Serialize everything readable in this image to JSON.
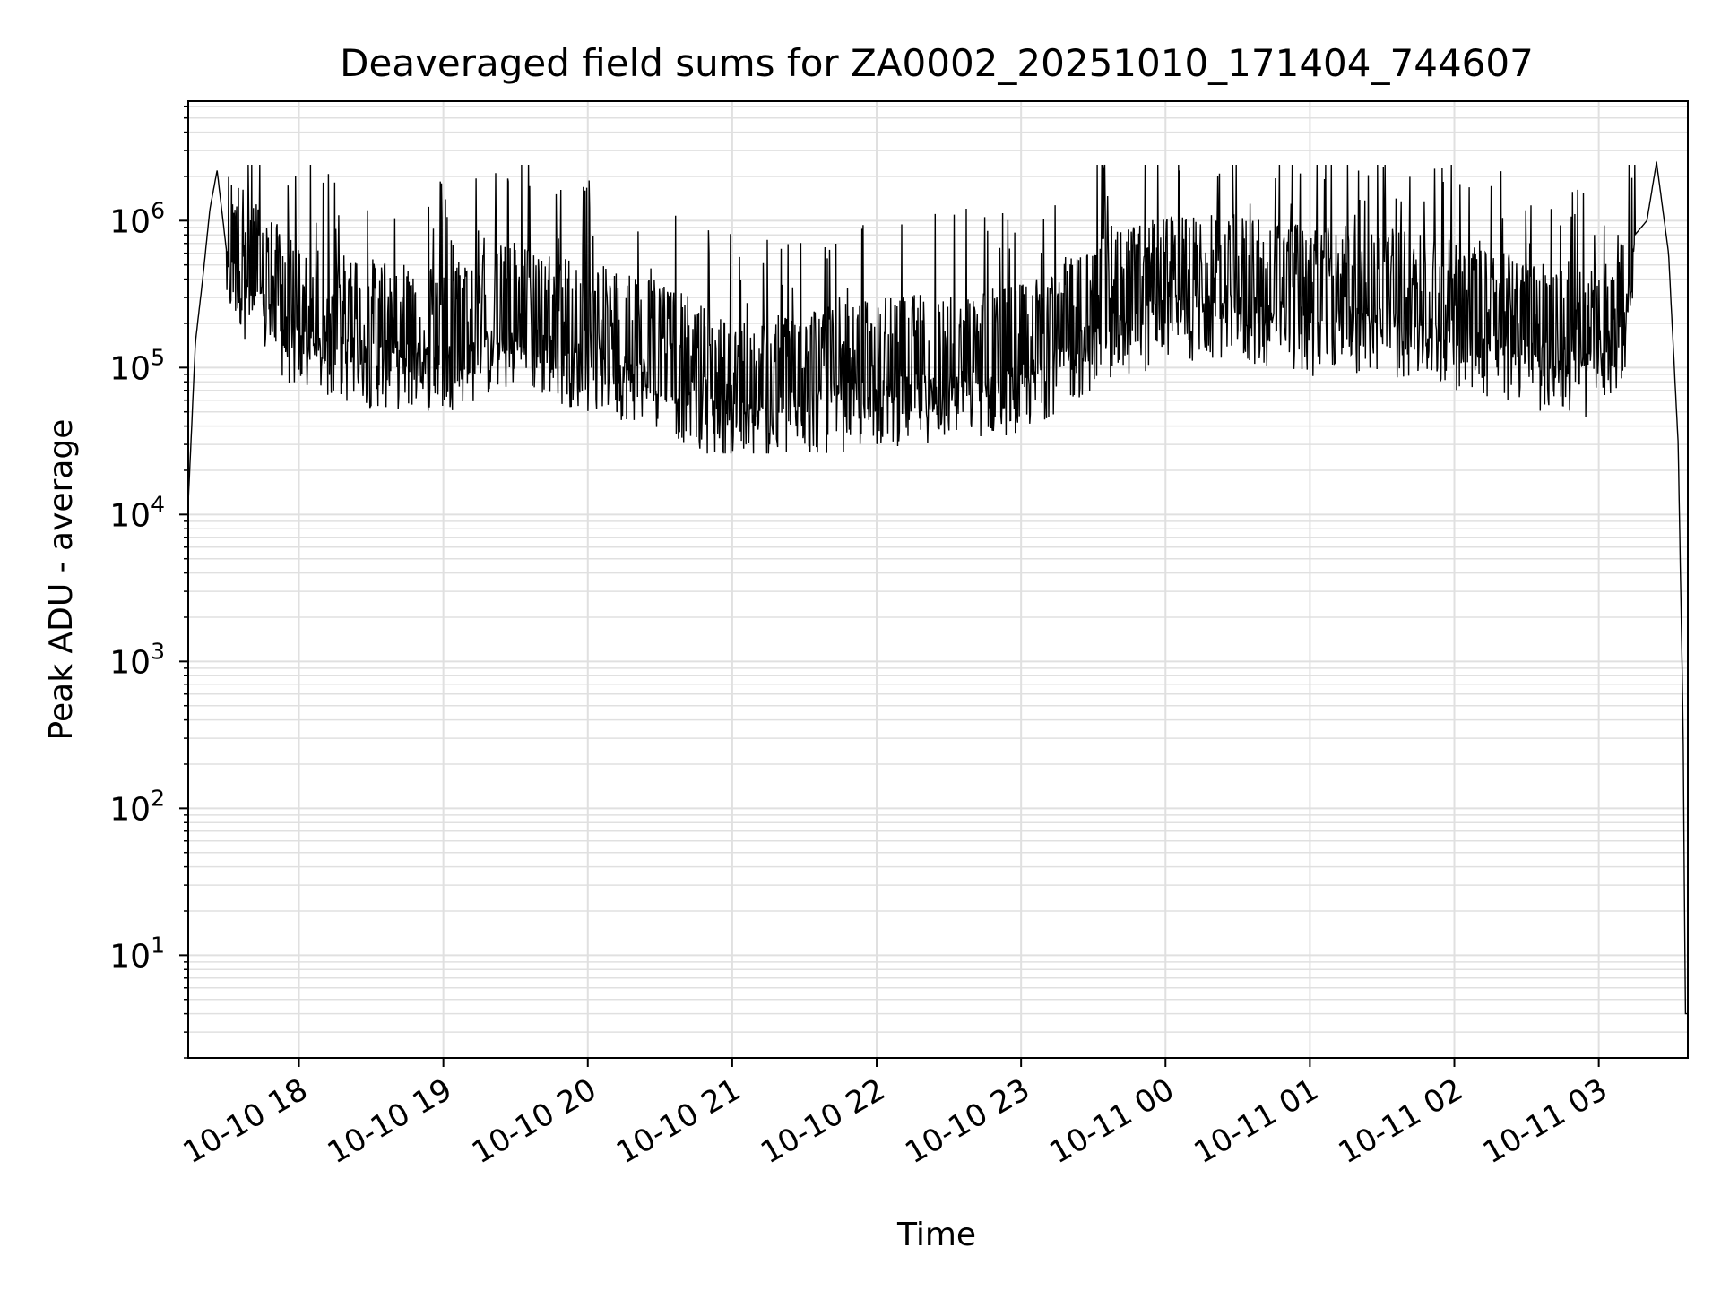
{
  "chart_data": {
    "type": "line",
    "title": "Deaveraged field sums for ZA0002_20251010_171404_744607",
    "xlabel": "Time",
    "ylabel": "Peak ADU - average",
    "yscale": "log",
    "ylim": [
      2,
      6500000
    ],
    "xlim": [
      "2025-10-10 17:14",
      "2025-10-11 03:37"
    ],
    "grid": true,
    "line_color": "#000000",
    "grid_color": "#e0e0e0",
    "x_ticks": [
      {
        "label": "10-10 18",
        "t": "2025-10-10 18:00"
      },
      {
        "label": "10-10 19",
        "t": "2025-10-10 19:00"
      },
      {
        "label": "10-10 20",
        "t": "2025-10-10 20:00"
      },
      {
        "label": "10-10 21",
        "t": "2025-10-10 21:00"
      },
      {
        "label": "10-10 22",
        "t": "2025-10-10 22:00"
      },
      {
        "label": "10-10 23",
        "t": "2025-10-10 23:00"
      },
      {
        "label": "10-11 00",
        "t": "2025-10-11 00:00"
      },
      {
        "label": "10-11 01",
        "t": "2025-10-11 01:00"
      },
      {
        "label": "10-11 02",
        "t": "2025-10-11 02:00"
      },
      {
        "label": "10-11 03",
        "t": "2025-10-11 03:00"
      }
    ],
    "y_ticks": [
      {
        "base": "10",
        "exp": "1",
        "value": 10
      },
      {
        "base": "10",
        "exp": "2",
        "value": 100
      },
      {
        "base": "10",
        "exp": "3",
        "value": 1000
      },
      {
        "base": "10",
        "exp": "4",
        "value": 10000
      },
      {
        "base": "10",
        "exp": "5",
        "value": 100000
      },
      {
        "base": "10",
        "exp": "6",
        "value": 1000000
      }
    ],
    "series": [
      {
        "x": [
          "2025-10-10 17:14",
          "2025-10-10 17:17",
          "2025-10-10 17:20",
          "2025-10-10 17:23",
          "2025-10-10 17:26",
          "2025-10-10 17:30",
          "2025-10-10 17:40",
          "2025-10-10 18:00",
          "2025-10-10 18:30",
          "2025-10-10 19:00",
          "2025-10-10 19:30",
          "2025-10-10 20:00",
          "2025-10-10 20:30",
          "2025-10-10 20:55",
          "2025-10-10 21:10",
          "2025-10-10 21:30",
          "2025-10-10 22:00",
          "2025-10-10 22:30",
          "2025-10-10 23:00",
          "2025-10-10 23:30",
          "2025-10-11 00:00",
          "2025-10-11 00:30",
          "2025-10-11 01:00",
          "2025-10-11 01:30",
          "2025-10-11 02:00",
          "2025-10-11 02:30",
          "2025-10-11 03:00",
          "2025-10-11 03:10",
          "2025-10-11 03:15",
          "2025-10-11 03:20",
          "2025-10-11 03:24",
          "2025-10-11 03:29",
          "2025-10-11 03:33",
          "2025-10-11 03:35",
          "2025-10-11 03:36",
          "2025-10-11 03:37"
        ],
        "values": [
          12000,
          150000,
          400000,
          1200000,
          2200000,
          600000,
          400000,
          180000,
          150000,
          140000,
          200000,
          140000,
          110000,
          60000,
          55000,
          70000,
          80000,
          90000,
          100000,
          200000,
          300000,
          300000,
          250000,
          250000,
          200000,
          150000,
          120000,
          200000,
          800000,
          1000000,
          2500000,
          600000,
          30000,
          400,
          4,
          4
        ],
        "noise": "dense spiky fluctuation between ~3e4 and ~2.5e6"
      }
    ]
  }
}
